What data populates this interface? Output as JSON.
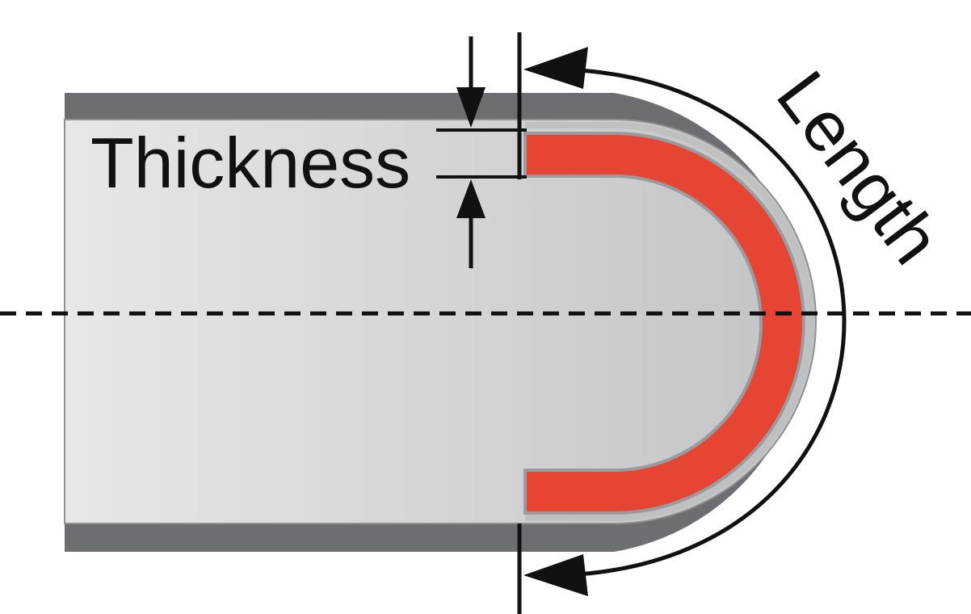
{
  "labels": {
    "thickness": "Thickness",
    "length": "Length"
  },
  "colors": {
    "background": "#ffffff",
    "outer_wall": "#6d6e71",
    "inner_fill": "#d4d5d6",
    "inner_fill_light": "#e6e7e8",
    "coating_red": "#e54532",
    "inner_edge": "#9a9b9d",
    "dimension_line": "#111111"
  }
}
